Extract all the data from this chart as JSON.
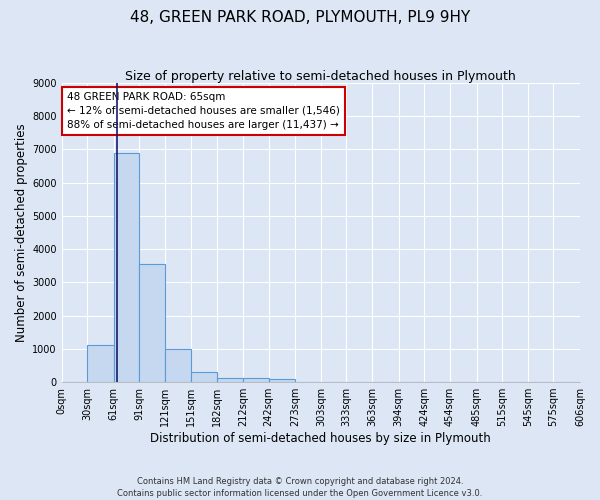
{
  "title": "48, GREEN PARK ROAD, PLYMOUTH, PL9 9HY",
  "subtitle": "Size of property relative to semi-detached houses in Plymouth",
  "xlabel": "Distribution of semi-detached houses by size in Plymouth",
  "ylabel": "Number of semi-detached properties",
  "bar_edges": [
    0,
    30,
    61,
    91,
    121,
    151,
    182,
    212,
    242,
    273,
    303,
    333,
    363,
    394,
    424,
    454,
    485,
    515,
    545,
    575,
    606
  ],
  "bar_heights": [
    0,
    1120,
    6900,
    3560,
    1000,
    310,
    130,
    110,
    90,
    0,
    0,
    0,
    0,
    0,
    0,
    0,
    0,
    0,
    0,
    0
  ],
  "property_size": 65,
  "bar_color": "#c5d8f0",
  "bar_edge_color": "#5b9bd5",
  "vline_color": "#1a1a6e",
  "annotation_text": "48 GREEN PARK ROAD: 65sqm\n← 12% of semi-detached houses are smaller (1,546)\n88% of semi-detached houses are larger (11,437) →",
  "annotation_box_color": "#ffffff",
  "annotation_box_edge_color": "#cc0000",
  "ylim": [
    0,
    9000
  ],
  "yticks": [
    0,
    1000,
    2000,
    3000,
    4000,
    5000,
    6000,
    7000,
    8000,
    9000
  ],
  "footnote": "Contains HM Land Registry data © Crown copyright and database right 2024.\nContains public sector information licensed under the Open Government Licence v3.0.",
  "bg_color": "#dce6f5",
  "plot_bg_color": "#dce6f5",
  "grid_color": "#ffffff",
  "title_fontsize": 11,
  "subtitle_fontsize": 9,
  "tick_label_fontsize": 7,
  "ylabel_fontsize": 8.5,
  "xlabel_fontsize": 8.5,
  "annotation_fontsize": 7.5
}
